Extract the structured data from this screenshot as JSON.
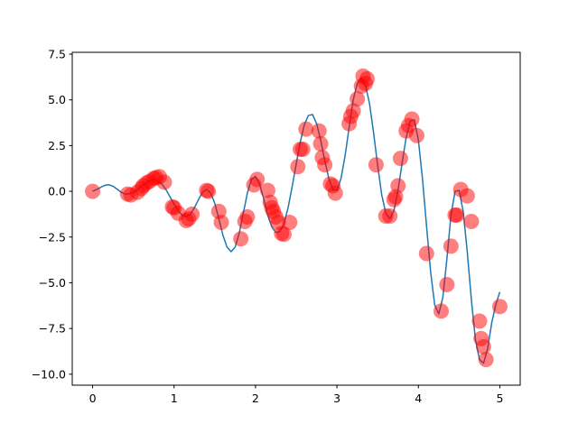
{
  "chart_data": {
    "type": "scatter",
    "xlim": [
      -0.25,
      5.25
    ],
    "ylim": [
      -10.6,
      7.6
    ],
    "x_ticks": [
      0,
      1,
      2,
      3,
      4,
      5
    ],
    "x_tick_labels": [
      "0",
      "1",
      "2",
      "3",
      "4",
      "5"
    ],
    "y_ticks": [
      -10,
      -7.5,
      -5,
      -2.5,
      0,
      2.5,
      5,
      7.5
    ],
    "y_tick_labels": [
      "−10.0",
      "−7.5",
      "−5.0",
      "−2.5",
      "0.0",
      "2.5",
      "5.0",
      "7.5"
    ],
    "grid": false,
    "series": [
      {
        "kind": "line",
        "color": "#1f77b4",
        "x": [
          0,
          0.05,
          0.1,
          0.15,
          0.2,
          0.25,
          0.3,
          0.35,
          0.4,
          0.45,
          0.5,
          0.55,
          0.6,
          0.65,
          0.7,
          0.75,
          0.8,
          0.85,
          0.9,
          0.95,
          1.0,
          1.05,
          1.1,
          1.15,
          1.2,
          1.25,
          1.3,
          1.35,
          1.4,
          1.45,
          1.5,
          1.55,
          1.6,
          1.65,
          1.7,
          1.75,
          1.8,
          1.85,
          1.9,
          1.95,
          2.0,
          2.05,
          2.1,
          2.15,
          2.2,
          2.25,
          2.3,
          2.35,
          2.4,
          2.45,
          2.5,
          2.55,
          2.6,
          2.65,
          2.7,
          2.75,
          2.8,
          2.85,
          2.9,
          2.95,
          3.0,
          3.05,
          3.1,
          3.15,
          3.2,
          3.25,
          3.3,
          3.35,
          3.4,
          3.45,
          3.5,
          3.55,
          3.6,
          3.65,
          3.7,
          3.75,
          3.8,
          3.85,
          3.9,
          3.95,
          4.0,
          4.05,
          4.1,
          4.15,
          4.2,
          4.25,
          4.3,
          4.35,
          4.4,
          4.45,
          4.5,
          4.55,
          4.6,
          4.65,
          4.7,
          4.75,
          4.8,
          4.85,
          4.9,
          4.95,
          5.0
        ],
        "y": [
          0,
          0.1,
          0.22,
          0.33,
          0.36,
          0.28,
          0.12,
          -0.05,
          -0.15,
          -0.14,
          -0.05,
          0.1,
          0.28,
          0.45,
          0.58,
          0.64,
          0.58,
          0.4,
          0.1,
          -0.3,
          -0.7,
          -1.05,
          -1.3,
          -1.38,
          -1.25,
          -0.9,
          -0.45,
          -0.05,
          0.1,
          -0.1,
          -0.65,
          -1.5,
          -2.4,
          -3.05,
          -3.3,
          -3.05,
          -2.3,
          -1.2,
          -0.1,
          0.65,
          0.82,
          0.4,
          -0.4,
          -1.3,
          -1.95,
          -2.25,
          -2.2,
          -1.75,
          -0.9,
          0.25,
          1.5,
          2.7,
          3.65,
          4.15,
          4.2,
          3.7,
          2.8,
          1.7,
          0.7,
          0.1,
          0.05,
          0.7,
          1.95,
          3.5,
          5.0,
          5.9,
          6.2,
          5.8,
          4.8,
          3.2,
          1.4,
          -0.2,
          -1.2,
          -1.5,
          -1.05,
          0.05,
          1.55,
          2.95,
          3.85,
          3.9,
          2.8,
          0.7,
          -1.9,
          -4.4,
          -6.2,
          -6.7,
          -5.8,
          -3.7,
          -1.3,
          0.0,
          0.05,
          -1.1,
          -3.3,
          -5.9,
          -8.1,
          -9.2,
          -9.4,
          -8.6,
          -7.2,
          -6.2,
          -5.5
        ]
      },
      {
        "kind": "points",
        "color": "#ff0000",
        "x": [
          0.0,
          0.43,
          0.47,
          0.55,
          0.6,
          0.62,
          0.66,
          0.7,
          0.75,
          0.78,
          0.82,
          0.88,
          0.98,
          1.0,
          1.05,
          1.15,
          1.18,
          1.22,
          1.4,
          1.42,
          1.55,
          1.58,
          1.82,
          1.87,
          1.9,
          1.98,
          2.02,
          2.15,
          2.18,
          2.2,
          2.22,
          2.25,
          2.28,
          2.32,
          2.35,
          2.42,
          2.52,
          2.55,
          2.58,
          2.62,
          2.78,
          2.8,
          2.82,
          2.85,
          2.92,
          2.95,
          2.98,
          3.15,
          3.17,
          3.2,
          3.25,
          3.3,
          3.32,
          3.35,
          3.37,
          3.48,
          3.6,
          3.65,
          3.7,
          3.72,
          3.75,
          3.78,
          3.85,
          3.88,
          3.92,
          3.98,
          4.1,
          4.28,
          4.35,
          4.4,
          4.45,
          4.47,
          4.52,
          4.6,
          4.65,
          4.75,
          4.77,
          4.8,
          4.83,
          5.0
        ],
        "y": [
          0.0,
          -0.15,
          -0.2,
          -0.05,
          0.15,
          0.3,
          0.45,
          0.55,
          0.7,
          0.75,
          0.8,
          0.5,
          -0.85,
          -0.9,
          -1.2,
          -1.6,
          -1.5,
          -1.25,
          0.05,
          0.0,
          -1.1,
          -1.7,
          -2.6,
          -1.65,
          -1.4,
          0.35,
          0.65,
          0.05,
          -0.6,
          -0.9,
          -1.1,
          -1.4,
          -1.7,
          -2.3,
          -2.35,
          -1.7,
          1.35,
          2.3,
          2.3,
          3.4,
          3.3,
          2.6,
          1.85,
          1.45,
          0.4,
          0.3,
          -0.1,
          3.7,
          4.1,
          4.4,
          5.05,
          5.75,
          6.3,
          5.9,
          6.15,
          1.45,
          -1.35,
          -1.35,
          -0.45,
          -0.3,
          0.3,
          1.8,
          3.3,
          3.6,
          3.95,
          3.05,
          -3.4,
          -6.55,
          -5.1,
          -3.0,
          -1.3,
          -1.3,
          0.1,
          -0.25,
          -1.65,
          -7.1,
          -8.05,
          -8.5,
          -9.2,
          -6.3
        ]
      }
    ]
  }
}
